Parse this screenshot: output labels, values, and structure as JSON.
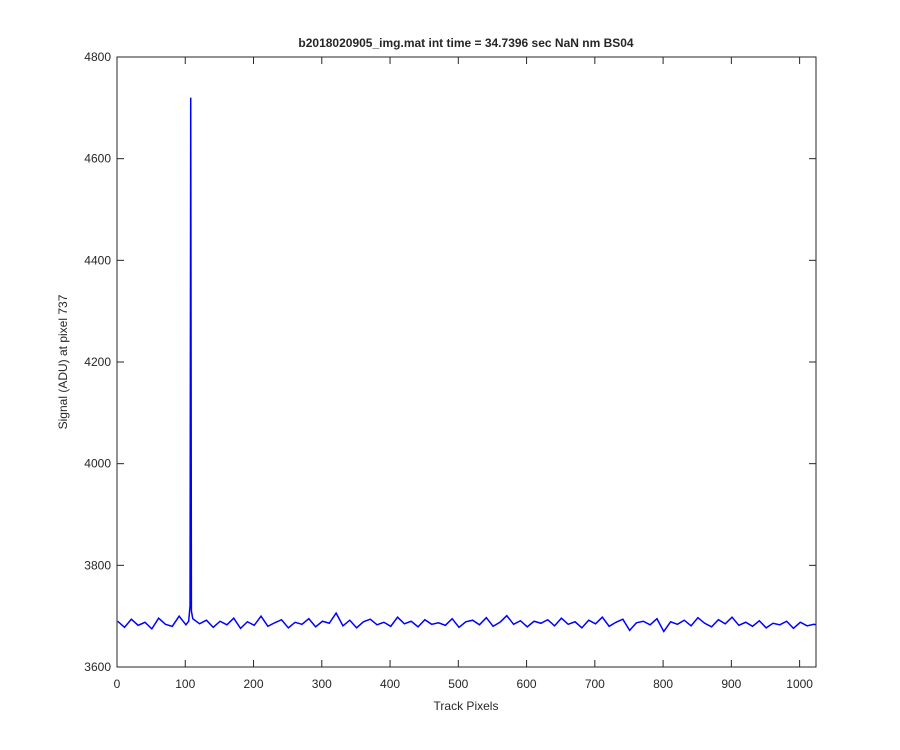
{
  "chart_data": {
    "type": "line",
    "title": "b2018020905_img.mat int time = 34.7396 sec  NaN nm BS04",
    "x_label": "Track Pixels",
    "y_label": "Signal (ADU) at pixel 737",
    "xlim": [
      0,
      1024
    ],
    "ylim": [
      3600,
      4800
    ],
    "xticks": [
      0,
      100,
      200,
      300,
      400,
      500,
      600,
      700,
      800,
      900,
      1000
    ],
    "yticks": [
      3600,
      3800,
      4000,
      4200,
      4400,
      4600,
      4800
    ],
    "x": [
      1,
      11,
      21,
      31,
      41,
      51,
      61,
      71,
      81,
      91,
      101,
      105,
      107,
      108,
      109,
      111,
      121,
      131,
      141,
      151,
      161,
      171,
      181,
      191,
      201,
      211,
      221,
      231,
      241,
      251,
      261,
      271,
      281,
      291,
      301,
      311,
      321,
      331,
      341,
      351,
      361,
      371,
      381,
      391,
      401,
      411,
      421,
      431,
      441,
      451,
      461,
      471,
      481,
      491,
      501,
      511,
      521,
      531,
      541,
      551,
      561,
      571,
      581,
      591,
      601,
      611,
      621,
      631,
      641,
      651,
      661,
      671,
      681,
      691,
      701,
      711,
      721,
      731,
      741,
      751,
      761,
      771,
      781,
      791,
      801,
      811,
      821,
      831,
      841,
      851,
      861,
      871,
      881,
      891,
      901,
      911,
      921,
      931,
      941,
      951,
      961,
      971,
      981,
      991,
      1001,
      1011,
      1021,
      1024
    ],
    "series": [
      {
        "color": "#0000ff",
        "values": [
          3690,
          3678,
          3694,
          3682,
          3688,
          3675,
          3696,
          3684,
          3680,
          3700,
          3683,
          3690,
          3720,
          4720,
          3710,
          3695,
          3685,
          3692,
          3678,
          3690,
          3683,
          3696,
          3676,
          3689,
          3682,
          3700,
          3680,
          3687,
          3693,
          3677,
          3688,
          3684,
          3695,
          3679,
          3690,
          3686,
          3706,
          3681,
          3692,
          3677,
          3689,
          3694,
          3683,
          3688,
          3680,
          3698,
          3685,
          3690,
          3679,
          3693,
          3684,
          3687,
          3682,
          3695,
          3678,
          3689,
          3692,
          3683,
          3697,
          3680,
          3688,
          3701,
          3684,
          3691,
          3679,
          3690,
          3686,
          3693,
          3681,
          3696,
          3684,
          3689,
          3677,
          3692,
          3685,
          3698,
          3680,
          3688,
          3694,
          3672,
          3687,
          3690,
          3683,
          3695,
          3670,
          3689,
          3684,
          3692,
          3681,
          3697,
          3686,
          3679,
          3693,
          3685,
          3698,
          3682,
          3688,
          3680,
          3691,
          3677,
          3686,
          3683,
          3690,
          3676,
          3688,
          3681,
          3684,
          3683
        ]
      }
    ]
  }
}
